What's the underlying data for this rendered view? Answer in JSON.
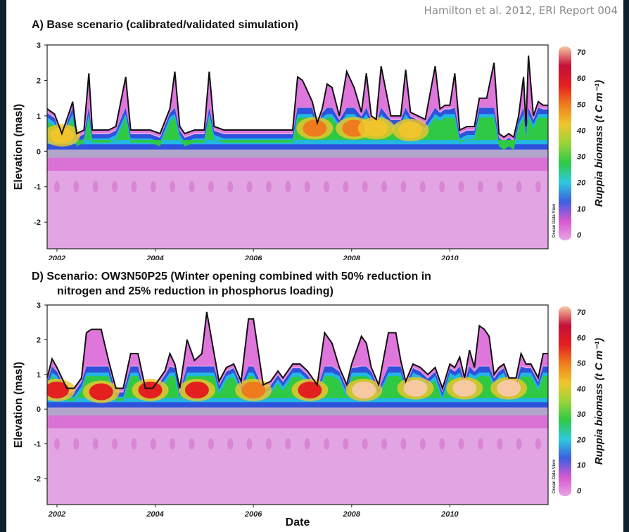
{
  "attribution": "Hamilton et al. 2012, ERI Report 004",
  "colorbar": {
    "label": "Ruppia biomass (t C m⁻¹)",
    "ticks": [
      "70",
      "60",
      "50",
      "40",
      "30",
      "20",
      "10",
      "0"
    ],
    "stops": [
      "#e8a6e4",
      "#d658d0",
      "#3d5fe0",
      "#2fc9e0",
      "#2fc944",
      "#9ad43a",
      "#f0c52c",
      "#ee7c1e",
      "#e41f1f",
      "#c4103a",
      "#f7c9a0"
    ]
  },
  "chart_data": [
    {
      "type": "heatmap",
      "title": "A) Base scenario (calibrated/validated simulation)",
      "xlabel": "Date",
      "ylabel": "Elevation (masl)",
      "x_ticks": [
        "2002",
        "2004",
        "2006",
        "2008",
        "2010"
      ],
      "y_ticks": [
        "3",
        "2",
        "1",
        "0",
        "-1",
        "-2"
      ],
      "xlim": [
        2001.8,
        2012.0
      ],
      "ylim": [
        -2.75,
        3
      ],
      "watermark": "Ocean Data View",
      "water_level": {
        "x": [
          2001.8,
          2001.95,
          2002.1,
          2002.25,
          2002.32,
          2002.4,
          2002.55,
          2002.65,
          2002.72,
          2002.9,
          2003.05,
          2003.2,
          2003.4,
          2003.5,
          2003.6,
          2003.75,
          2003.9,
          2004.1,
          2004.3,
          2004.4,
          2004.5,
          2004.6,
          2004.8,
          2005.0,
          2005.1,
          2005.2,
          2005.4,
          2005.6,
          2005.8,
          2006.0,
          2006.2,
          2006.4,
          2006.6,
          2006.8,
          2006.9,
          2007.0,
          2007.2,
          2007.3,
          2007.4,
          2007.5,
          2007.6,
          2007.75,
          2007.9,
          2008.05,
          2008.2,
          2008.3,
          2008.4,
          2008.5,
          2008.6,
          2008.8,
          2009.0,
          2009.1,
          2009.2,
          2009.35,
          2009.5,
          2009.7,
          2009.8,
          2009.9,
          2010.0,
          2010.1,
          2010.2,
          2010.35,
          2010.5,
          2010.6,
          2010.75,
          2010.9,
          2011.0,
          2011.1,
          2011.2,
          2011.3,
          2011.4,
          2011.5,
          2011.55,
          2011.6,
          2011.7,
          2011.8,
          2011.9,
          2012.0
        ],
        "y": [
          1.2,
          1.05,
          0.5,
          1.1,
          1.4,
          0.5,
          0.6,
          2.2,
          0.6,
          0.6,
          0.6,
          0.7,
          2.1,
          0.6,
          0.6,
          0.6,
          0.6,
          0.5,
          1.2,
          2.25,
          0.7,
          0.5,
          0.6,
          0.6,
          2.25,
          0.7,
          0.6,
          0.6,
          0.6,
          0.6,
          0.6,
          0.6,
          0.6,
          0.6,
          2.1,
          2.0,
          1.4,
          0.8,
          1.2,
          1.9,
          1.8,
          1.0,
          2.25,
          1.8,
          1.1,
          2.2,
          1.0,
          0.9,
          2.4,
          1.0,
          1.0,
          2.3,
          1.1,
          1.0,
          0.9,
          2.4,
          1.2,
          1.3,
          1.3,
          2.2,
          0.6,
          0.7,
          0.7,
          1.5,
          1.5,
          2.5,
          0.5,
          0.4,
          0.5,
          0.4,
          1.0,
          2.1,
          0.7,
          2.7,
          1.0,
          1.4,
          1.3,
          1.3
        ]
      },
      "biomass_patches": [
        {
          "x": 2002.1,
          "elev": 0.45,
          "value": 45
        },
        {
          "x": 2007.25,
          "elev": 0.65,
          "value": 52
        },
        {
          "x": 2008.05,
          "elev": 0.65,
          "value": 53
        },
        {
          "x": 2008.5,
          "elev": 0.65,
          "value": 46
        },
        {
          "x": 2009.2,
          "elev": 0.6,
          "value": 42
        }
      ]
    },
    {
      "type": "heatmap",
      "title": "D) Scenario: OW3N50P25 (Winter opening combined with 50% reduction in nitrogen and 25% reduction in phosphorus loading)",
      "title_lines": [
        "D) Scenario: OW3N50P25 (Winter opening combined with 50% reduction in",
        "nitrogen and 25% reduction in phosphorus loading)"
      ],
      "xlabel": "Date",
      "ylabel": "Elevation (masl)",
      "x_ticks": [
        "2002",
        "2004",
        "2006",
        "2008",
        "2010"
      ],
      "y_ticks": [
        "3",
        "2",
        "1",
        "0",
        "-1",
        "-2"
      ],
      "xlim": [
        2001.8,
        2012.0
      ],
      "ylim": [
        -2.75,
        3
      ],
      "watermark": "Ocean Data View",
      "water_level": {
        "x": [
          2001.8,
          2001.9,
          2002.0,
          2002.2,
          2002.35,
          2002.5,
          2002.6,
          2002.7,
          2002.9,
          2003.05,
          2003.2,
          2003.35,
          2003.5,
          2003.65,
          2003.8,
          2003.95,
          2004.05,
          2004.2,
          2004.3,
          2004.4,
          2004.5,
          2004.65,
          2004.8,
          2004.95,
          2005.05,
          2005.2,
          2005.3,
          2005.45,
          2005.6,
          2005.75,
          2005.9,
          2006.0,
          2006.2,
          2006.35,
          2006.5,
          2006.6,
          2006.8,
          2006.95,
          2007.1,
          2007.2,
          2007.3,
          2007.45,
          2007.6,
          2007.75,
          2007.9,
          2008.0,
          2008.2,
          2008.3,
          2008.4,
          2008.55,
          2008.75,
          2008.9,
          2009.0,
          2009.1,
          2009.25,
          2009.4,
          2009.55,
          2009.7,
          2009.85,
          2010.0,
          2010.1,
          2010.2,
          2010.3,
          2010.4,
          2010.5,
          2010.6,
          2010.7,
          2010.8,
          2010.9,
          2011.0,
          2011.1,
          2011.2,
          2011.35,
          2011.45,
          2011.55,
          2011.65,
          2011.8,
          2011.9,
          2012.0
        ],
        "y": [
          0.9,
          1.45,
          1.2,
          0.6,
          0.6,
          0.9,
          2.2,
          2.3,
          2.3,
          1.4,
          0.6,
          0.6,
          1.6,
          1.6,
          0.6,
          0.6,
          0.8,
          1.1,
          1.6,
          1.3,
          0.6,
          2.0,
          1.4,
          1.6,
          2.8,
          1.6,
          0.8,
          1.2,
          1.3,
          0.8,
          2.6,
          2.6,
          0.7,
          0.8,
          1.1,
          0.9,
          1.3,
          1.3,
          1.1,
          0.9,
          0.7,
          2.2,
          1.9,
          1.2,
          0.7,
          1.3,
          2.1,
          1.9,
          1.2,
          0.7,
          2.2,
          2.2,
          1.4,
          0.8,
          1.3,
          1.2,
          1.0,
          1.2,
          0.6,
          1.3,
          1.2,
          1.5,
          0.9,
          1.7,
          1.2,
          2.4,
          2.3,
          2.1,
          1.0,
          1.2,
          1.3,
          0.9,
          0.9,
          1.6,
          1.3,
          1.3,
          0.9,
          1.6,
          1.6
        ]
      },
      "biomass_patches": [
        {
          "x": 2002.0,
          "elev": 0.55,
          "value": 62
        },
        {
          "x": 2002.9,
          "elev": 0.5,
          "value": 60
        },
        {
          "x": 2003.9,
          "elev": 0.55,
          "value": 58
        },
        {
          "x": 2004.85,
          "elev": 0.55,
          "value": 62
        },
        {
          "x": 2006.0,
          "elev": 0.55,
          "value": 56
        },
        {
          "x": 2007.15,
          "elev": 0.55,
          "value": 58
        },
        {
          "x": 2008.25,
          "elev": 0.55,
          "value": 66
        },
        {
          "x": 2009.3,
          "elev": 0.6,
          "value": 70
        },
        {
          "x": 2010.3,
          "elev": 0.6,
          "value": 72
        },
        {
          "x": 2011.2,
          "elev": 0.6,
          "value": 72
        }
      ]
    }
  ]
}
